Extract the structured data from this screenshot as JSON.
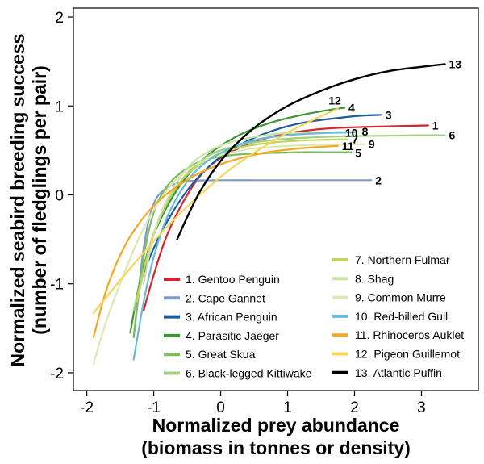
{
  "chart_data": {
    "type": "line",
    "xlabel_line1": "Normalized prey abundance",
    "xlabel_line2": "(biomass in tonnes or density)",
    "ylabel_line1": "Normalized seabird breeding success",
    "ylabel_line2": "(number of fledglings per pair)",
    "xlim": [
      -2.2,
      3.85
    ],
    "ylim": [
      -2.2,
      2.1
    ],
    "xticks": [
      -2,
      -1,
      0,
      1,
      2,
      3
    ],
    "yticks": [
      -2,
      -1,
      0,
      1,
      2
    ],
    "grid": false,
    "legend_position": "bottom-right",
    "series": [
      {
        "id": "1",
        "name": "1. Gentoo Penguin",
        "color": "#d7232f",
        "width": 2.2,
        "x": [
          -1.15,
          -1.0,
          -0.8,
          -0.5,
          -0.2,
          0.2,
          0.6,
          1.0,
          1.5,
          2.0,
          2.5,
          3.1
        ],
        "y": [
          -1.3,
          -0.9,
          -0.45,
          0.0,
          0.3,
          0.5,
          0.62,
          0.69,
          0.74,
          0.76,
          0.77,
          0.78
        ]
      },
      {
        "id": "2",
        "name": "2. Cape Gannet",
        "color": "#7f9ac8",
        "width": 2.2,
        "x": [
          -1.3,
          -1.15,
          -1.0,
          -0.8,
          -0.6,
          -0.4,
          0.0,
          0.5,
          1.0,
          1.5,
          2.0,
          2.25
        ],
        "y": [
          -1.6,
          -0.6,
          -0.1,
          0.08,
          0.14,
          0.16,
          0.165,
          0.165,
          0.165,
          0.165,
          0.165,
          0.165
        ]
      },
      {
        "id": "3",
        "name": "3. African Penguin",
        "color": "#1c5b9e",
        "width": 2.2,
        "x": [
          -1.2,
          -1.0,
          -0.8,
          -0.5,
          -0.2,
          0.1,
          0.5,
          0.9,
          1.3,
          1.7,
          2.1,
          2.4
        ],
        "y": [
          -0.97,
          -0.6,
          -0.3,
          0.05,
          0.3,
          0.48,
          0.64,
          0.75,
          0.82,
          0.86,
          0.89,
          0.9
        ]
      },
      {
        "id": "4",
        "name": "4. Parasitic Jaeger",
        "color": "#3f9634",
        "width": 2.2,
        "x": [
          -1.35,
          -1.2,
          -1.0,
          -0.7,
          -0.4,
          -0.1,
          0.3,
          0.7,
          1.1,
          1.5,
          1.85
        ],
        "y": [
          -1.55,
          -0.95,
          -0.45,
          0.0,
          0.3,
          0.5,
          0.68,
          0.8,
          0.88,
          0.94,
          0.98
        ]
      },
      {
        "id": "5",
        "name": "5. Great Skua",
        "color": "#7dbb5f",
        "width": 2.2,
        "x": [
          -1.3,
          -1.15,
          -1.0,
          -0.8,
          -0.5,
          -0.2,
          0.2,
          0.7,
          1.2,
          1.6,
          1.95
        ],
        "y": [
          -1.6,
          -0.7,
          -0.2,
          0.1,
          0.3,
          0.4,
          0.45,
          0.47,
          0.48,
          0.48,
          0.48
        ]
      },
      {
        "id": "6",
        "name": "6. Black-legged Kittiwake",
        "color": "#a3cf82",
        "width": 2.2,
        "x": [
          -1.3,
          -1.1,
          -0.9,
          -0.6,
          -0.3,
          0.0,
          0.5,
          1.0,
          1.5,
          2.0,
          2.5,
          3.0,
          3.35
        ],
        "y": [
          -1.3,
          -0.7,
          -0.25,
          0.15,
          0.38,
          0.5,
          0.59,
          0.63,
          0.65,
          0.66,
          0.665,
          0.67,
          0.67
        ]
      },
      {
        "id": "7",
        "name": "7. Northern Fulmar",
        "color": "#bcd65e",
        "width": 2.2,
        "x": [
          -1.25,
          -1.05,
          -0.85,
          -0.6,
          -0.3,
          0.0,
          0.4,
          0.8,
          1.2,
          1.6,
          1.9
        ],
        "y": [
          -1.2,
          -0.55,
          -0.15,
          0.15,
          0.35,
          0.47,
          0.55,
          0.59,
          0.61,
          0.62,
          0.625
        ]
      },
      {
        "id": "8",
        "name": "8. Shag",
        "color": "#cde2a6",
        "width": 2.2,
        "x": [
          -1.15,
          -1.0,
          -0.8,
          -0.5,
          -0.2,
          0.1,
          0.5,
          0.9,
          1.3,
          1.7,
          2.05
        ],
        "y": [
          -1.0,
          -0.45,
          -0.05,
          0.3,
          0.48,
          0.58,
          0.65,
          0.69,
          0.7,
          0.705,
          0.71
        ]
      },
      {
        "id": "9",
        "name": "9. Common Murre",
        "color": "#dce8b2",
        "width": 2.2,
        "x": [
          -1.9,
          -1.7,
          -1.45,
          -1.2,
          -0.9,
          -0.6,
          -0.2,
          0.3,
          0.8,
          1.3,
          1.8,
          2.15
        ],
        "y": [
          -1.9,
          -1.4,
          -0.9,
          -0.45,
          -0.05,
          0.22,
          0.4,
          0.5,
          0.54,
          0.56,
          0.565,
          0.57
        ]
      },
      {
        "id": "10",
        "name": "10. Red-billed Gull",
        "color": "#66bbd9",
        "width": 2.2,
        "x": [
          -1.3,
          -1.15,
          -1.0,
          -0.8,
          -0.5,
          -0.2,
          0.2,
          0.6,
          1.0,
          1.4,
          1.8,
          2.0
        ],
        "y": [
          -1.85,
          -1.2,
          -0.7,
          -0.25,
          0.15,
          0.38,
          0.54,
          0.63,
          0.67,
          0.69,
          0.7,
          0.7
        ]
      },
      {
        "id": "11",
        "name": "11. Rhinoceros Auklet",
        "color": "#f5a623",
        "width": 2.2,
        "x": [
          -1.9,
          -1.7,
          -1.45,
          -1.2,
          -0.9,
          -0.6,
          -0.3,
          0.1,
          0.5,
          0.9,
          1.3,
          1.75
        ],
        "y": [
          -1.6,
          -1.05,
          -0.6,
          -0.3,
          -0.05,
          0.12,
          0.25,
          0.37,
          0.45,
          0.5,
          0.53,
          0.55
        ]
      },
      {
        "id": "12",
        "name": "12. Pigeon Guillemot",
        "color": "#f9d55b",
        "width": 2.2,
        "x": [
          -1.9,
          -1.6,
          -1.3,
          -1.0,
          -0.7,
          -0.4,
          -0.1,
          0.2,
          0.6,
          1.0,
          1.4,
          1.75
        ],
        "y": [
          -1.33,
          -1.05,
          -0.78,
          -0.52,
          -0.28,
          -0.06,
          0.14,
          0.32,
          0.52,
          0.7,
          0.85,
          0.97
        ]
      },
      {
        "id": "13",
        "name": "13. Atlantic Puffin",
        "color": "#000000",
        "width": 2.4,
        "x": [
          -0.65,
          -0.5,
          -0.3,
          0.0,
          0.3,
          0.6,
          1.0,
          1.5,
          2.0,
          2.5,
          3.0,
          3.35
        ],
        "y": [
          -0.5,
          -0.25,
          0.05,
          0.38,
          0.62,
          0.81,
          1.0,
          1.17,
          1.3,
          1.39,
          1.44,
          1.47
        ]
      }
    ],
    "end_labels": [
      {
        "text": "1",
        "x": 3.1,
        "y": 0.78
      },
      {
        "text": "2",
        "x": 2.25,
        "y": 0.165
      },
      {
        "text": "3",
        "x": 2.4,
        "y": 0.9
      },
      {
        "text": "4",
        "x": 1.85,
        "y": 0.98
      },
      {
        "text": "12",
        "x": 1.55,
        "y": 1.06
      },
      {
        "text": "6",
        "x": 3.35,
        "y": 0.67
      },
      {
        "text": "10",
        "x": 1.8,
        "y": 0.7
      },
      {
        "text": "8",
        "x": 2.05,
        "y": 0.71
      },
      {
        "text": "7",
        "x": 1.9,
        "y": 0.625
      },
      {
        "text": "9",
        "x": 2.15,
        "y": 0.57
      },
      {
        "text": "11",
        "x": 1.75,
        "y": 0.55
      },
      {
        "text": "5",
        "x": 1.95,
        "y": 0.47
      },
      {
        "text": "13",
        "x": 3.35,
        "y": 1.47
      }
    ]
  }
}
